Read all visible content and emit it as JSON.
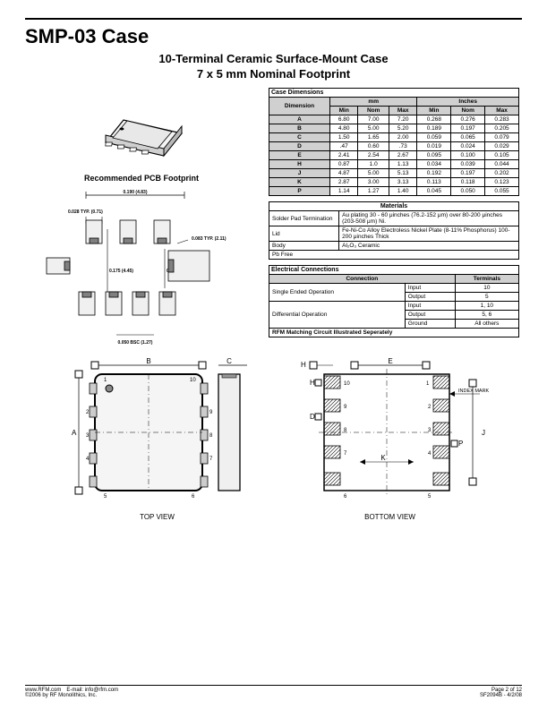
{
  "header": {
    "title": "SMP-03 Case",
    "subtitle1": "10-Terminal Ceramic Surface-Mount Case",
    "subtitle2": "7 x 5 mm Nominal Footprint"
  },
  "pcb_label": "Recommended PCB Footprint",
  "footprint_labels": {
    "top_w": "0.190 (4.83)",
    "pad_w": "0.028 TYP. (0.71)",
    "right_w": "0.083 TYP. (2.11)",
    "left_h": "0.175 (4.45)",
    "right_h": "0.100 (2.54)",
    "bottom_w": "0.050 BSC (1.27)"
  },
  "case_dimensions": {
    "title": "Case Dimensions",
    "col_dim": "Dimension",
    "col_mm": "mm",
    "col_in": "Inches",
    "sub_min": "Min",
    "sub_nom": "Nom",
    "sub_max": "Max",
    "rows": [
      {
        "d": "A",
        "mm_min": "6.80",
        "mm_nom": "7.00",
        "mm_max": "7.20",
        "in_min": "0.268",
        "in_nom": "0.276",
        "in_max": "0.283"
      },
      {
        "d": "B",
        "mm_min": "4.80",
        "mm_nom": "5.00",
        "mm_max": "5.20",
        "in_min": "0.189",
        "in_nom": "0.197",
        "in_max": "0.205"
      },
      {
        "d": "C",
        "mm_min": "1.50",
        "mm_nom": "1.65",
        "mm_max": "2.00",
        "in_min": "0.059",
        "in_nom": "0.065",
        "in_max": "0.079"
      },
      {
        "d": "D",
        "mm_min": ".47",
        "mm_nom": "0.60",
        "mm_max": ".73",
        "in_min": "0.019",
        "in_nom": "0.024",
        "in_max": "0.029"
      },
      {
        "d": "E",
        "mm_min": "2.41",
        "mm_nom": "2.54",
        "mm_max": "2.67",
        "in_min": "0.095",
        "in_nom": "0.100",
        "in_max": "0.105"
      },
      {
        "d": "H",
        "mm_min": "0.87",
        "mm_nom": "1.0",
        "mm_max": "1.13",
        "in_min": "0.034",
        "in_nom": "0.039",
        "in_max": "0.044"
      },
      {
        "d": "J",
        "mm_min": "4.87",
        "mm_nom": "5.00",
        "mm_max": "5.13",
        "in_min": "0.192",
        "in_nom": "0.197",
        "in_max": "0.202"
      },
      {
        "d": "K",
        "mm_min": "2.87",
        "mm_nom": "3.00",
        "mm_max": "3.13",
        "in_min": "0.113",
        "in_nom": "0.118",
        "in_max": "0.123"
      },
      {
        "d": "P",
        "mm_min": "1.14",
        "mm_nom": "1.27",
        "mm_max": "1.40",
        "in_min": "0.045",
        "in_nom": "0.050",
        "in_max": "0.055"
      }
    ]
  },
  "materials": {
    "title": "Materials",
    "rows": [
      {
        "k": "Solder Pad Termination",
        "v": "Au plating 30 - 60 μinches (76.2-152 μm) over 80-200 μinches (203-508 μm) Ni."
      },
      {
        "k": "Lid",
        "v": "Fe-Ni-Co Alloy Electroless Nickel Plate (8-11% Phosphorus) 100-200 μinches Thick"
      },
      {
        "k": "Body",
        "v": "Al₂O₃ Ceramic"
      },
      {
        "k": "Pb Free",
        "v": ""
      }
    ]
  },
  "electrical": {
    "title": "Electrical Connections",
    "col_conn": "Connection",
    "col_term": "Terminals",
    "rows": [
      {
        "op": "Single Ended Operation",
        "io": "Input",
        "t": "10"
      },
      {
        "op": "",
        "io": "Output",
        "t": "5"
      },
      {
        "op": "Differential Operation",
        "io": "Input",
        "t": "1, 10"
      },
      {
        "op": "",
        "io": "Output",
        "t": "5, 6"
      },
      {
        "op": "",
        "io": "Ground",
        "t": "All others"
      }
    ],
    "note": "RFM Matching Circuit Illustrated Seperately"
  },
  "views": {
    "top_label": "TOP VIEW",
    "bottom_label": "BOTTOM VIEW",
    "index_mark": "INDEX MARK",
    "dim_B": "B",
    "dim_A": "A",
    "dim_C": "C",
    "dim_H": "H",
    "dim_E": "E",
    "dim_D": "D",
    "dim_J": "J",
    "dim_K": "K",
    "dim_P": "P",
    "pins_top": [
      "1",
      "2",
      "3",
      "4",
      "5",
      "6",
      "7",
      "8",
      "9",
      "10"
    ],
    "pins_bot": [
      "1",
      "2",
      "3",
      "4",
      "5",
      "6",
      "7",
      "8",
      "9",
      "10"
    ]
  },
  "footer": {
    "left1": "www.RFM.com E-mail: info@rfm.com",
    "left2": "©2006 by RF Monolithics, Inc.",
    "right1": "Page 2 of 12",
    "right2": "SF2094B - 4/2/08"
  }
}
